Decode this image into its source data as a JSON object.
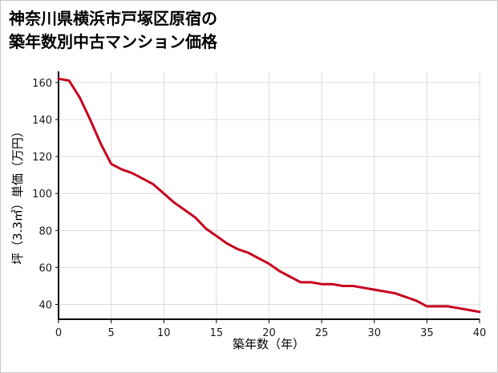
{
  "title": {
    "line1": "神奈川県横浜市戸塚区原宿の",
    "line2": "築年数別中古マンション価格"
  },
  "chart_data": {
    "type": "line",
    "title": "神奈川県横浜市戸塚区原宿の築年数別中古マンション価格",
    "xlabel": "築年数（年）",
    "ylabel": "坪（3.3㎡）単価（万円）",
    "x": [
      0,
      1,
      2,
      3,
      4,
      5,
      6,
      7,
      8,
      9,
      10,
      11,
      12,
      13,
      14,
      15,
      16,
      17,
      18,
      19,
      20,
      21,
      22,
      23,
      24,
      25,
      26,
      27,
      28,
      29,
      30,
      31,
      32,
      33,
      34,
      35,
      36,
      37,
      38,
      39,
      40
    ],
    "values": [
      162,
      161,
      152,
      140,
      127,
      116,
      113,
      111,
      108,
      105,
      100,
      95,
      91,
      87,
      81,
      77,
      73,
      70,
      68,
      65,
      62,
      58,
      55,
      52,
      52,
      51,
      51,
      50,
      50,
      49,
      48,
      47,
      46,
      44,
      42,
      39,
      39,
      39,
      38,
      37,
      36
    ],
    "xlim": [
      0,
      40
    ],
    "ylim": [
      32,
      166
    ],
    "xticks": [
      0,
      5,
      10,
      15,
      20,
      25,
      30,
      35,
      40
    ],
    "yticks": [
      40,
      60,
      80,
      100,
      120,
      140,
      160
    ],
    "grid": true,
    "legend": false,
    "line_color": "#c7001e",
    "grid_color": "#dcdcdc",
    "axis_color": "#000000"
  }
}
